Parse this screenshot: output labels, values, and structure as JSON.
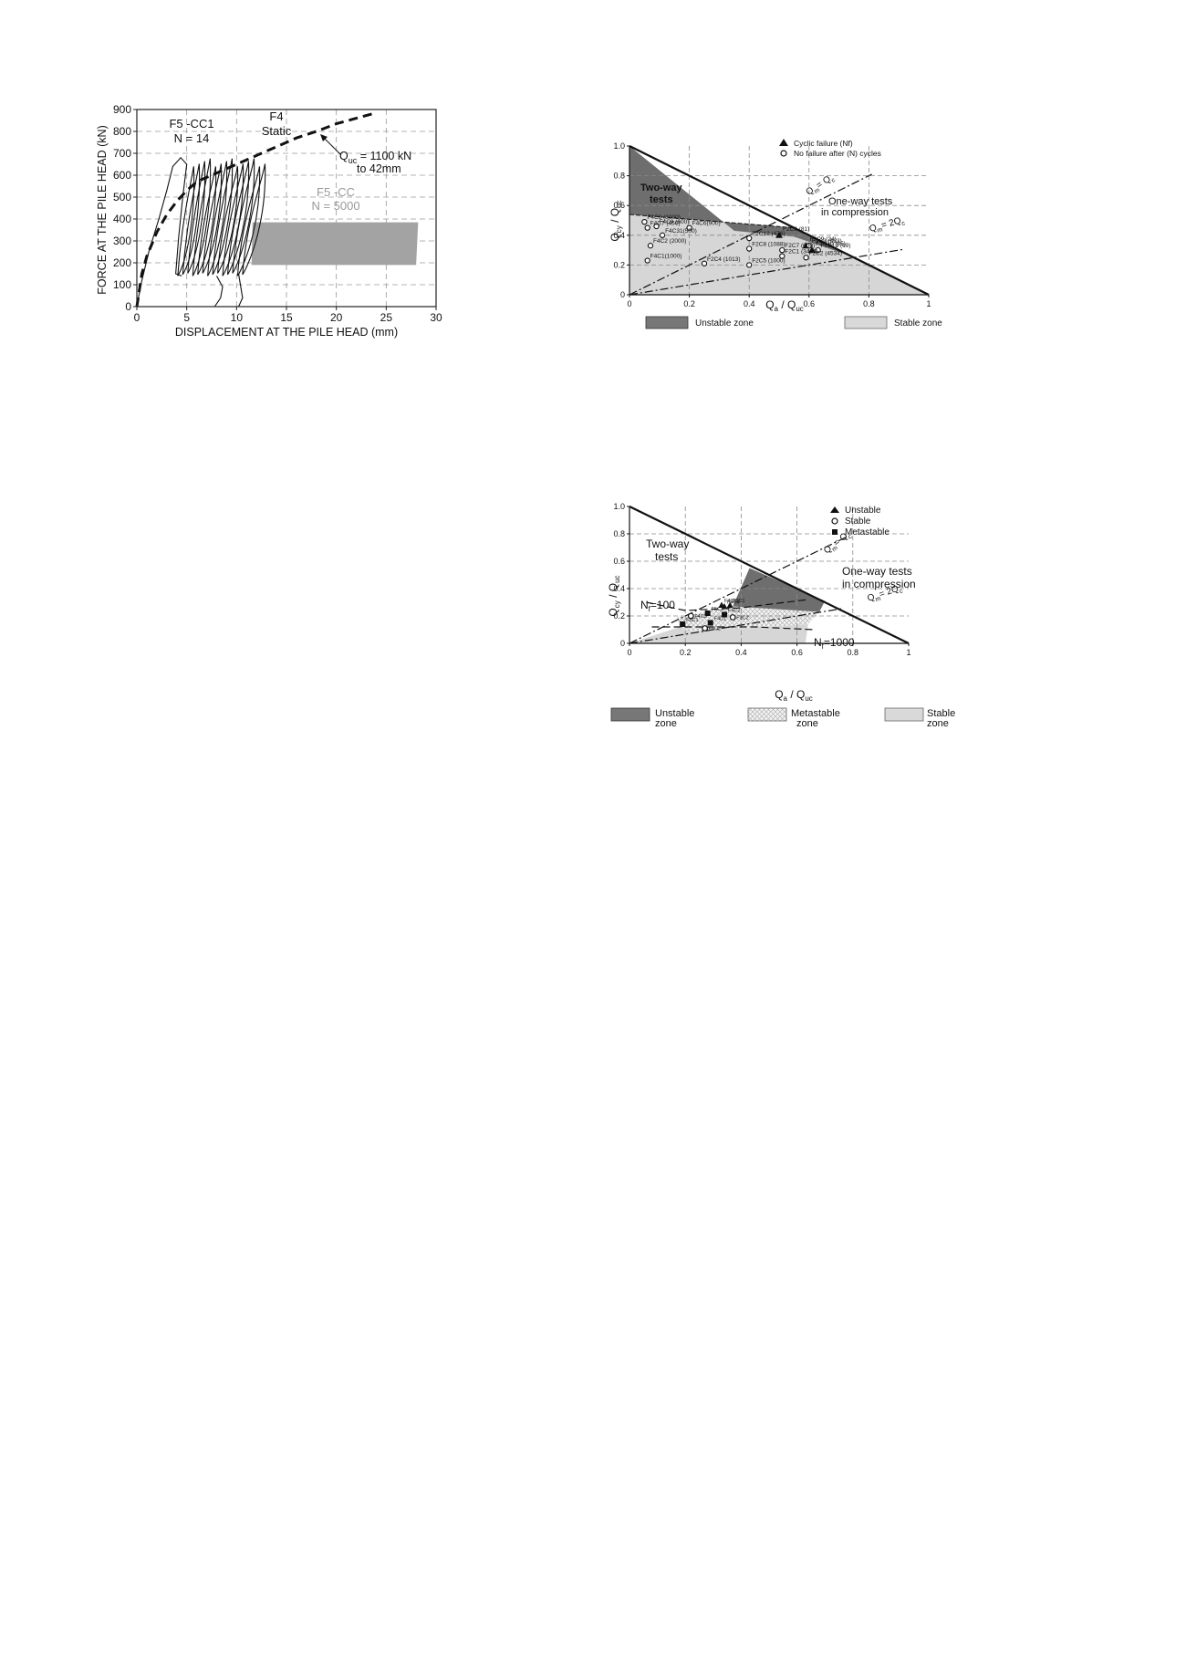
{
  "charts": [
    {
      "type": "line",
      "xlabel": "DISPLACEMENT AT THE PILE HEAD (mm)",
      "ylabel": "FORCE AT THE PILE HEAD (kN)",
      "xlim": [
        0,
        30
      ],
      "ylim": [
        0,
        900
      ],
      "xticks": [
        0,
        5,
        10,
        15,
        20,
        25,
        30
      ],
      "yticks": [
        0,
        100,
        200,
        300,
        400,
        500,
        600,
        700,
        800,
        900
      ],
      "grid": true,
      "series": [
        {
          "name": "F4 Static",
          "style": "dashed",
          "x": [
            0,
            0.5,
            1,
            2,
            3,
            4,
            5,
            6,
            8,
            10,
            12,
            14,
            16,
            18,
            20,
            22,
            24
          ],
          "y": [
            0,
            150,
            230,
            340,
            420,
            480,
            530,
            570,
            610,
            650,
            690,
            730,
            770,
            800,
            835,
            860,
            885
          ]
        },
        {
          "name": "F5 -CC1",
          "style": "cyclic loops",
          "x_range": [
            3.5,
            11.5
          ],
          "y_range": [
            130,
            700
          ],
          "cycles": "N = 14"
        },
        {
          "name": "F5 -CC",
          "style": "shaded band",
          "x": [
            11.5,
            28
          ],
          "y_min": 190,
          "y_max": 385,
          "cycles": "N = 5000"
        }
      ],
      "labels": {
        "cc1_name": "F5 -CC1",
        "cc1_n": "N = 14",
        "static_name": "F4",
        "static_sub": "Static",
        "quc_main": "Q",
        "quc_sub": "uc",
        "quc_rest": " = 1100 kN",
        "quc_line2": "to 42mm",
        "cc_name": "F5 -CC",
        "cc_n": "N = 5000"
      }
    },
    {
      "type": "scatter",
      "xlabel_main": "Q",
      "xlabel_sub1": "a",
      "xlabel_mid": " / Q",
      "xlabel_sub2": "uc",
      "ylabel_main": "Q",
      "ylabel_sub1": "cy",
      "ylabel_mid": " / Q",
      "ylabel_sub2": "uc",
      "xlim": [
        0,
        1
      ],
      "ylim": [
        0,
        1
      ],
      "xticks": [
        0,
        0.2,
        0.4,
        0.6,
        0.8,
        1
      ],
      "xtick_labels": [
        "0",
        "0.2",
        "0.4",
        "0.6",
        "0.8",
        "1"
      ],
      "yticks": [
        0,
        0.2,
        0.4,
        0.6,
        0.8,
        1.0
      ],
      "ytick_labels": [
        "0",
        "0.2",
        "0.4",
        "0.6",
        "0.8",
        "1.0"
      ],
      "grid": true,
      "legend": {
        "placement": "top-right",
        "cyclic_failure": "Cyclic failure (Nf)",
        "no_failure": "No failure after (N) cycles"
      },
      "zone_legend": {
        "unstable": "Unstable zone",
        "stable": "Stable zone"
      },
      "region_labels": {
        "two_way_1": "Two-way",
        "two_way_2": "tests",
        "one_way_1": "One-way tests",
        "one_way_2": "in compression"
      },
      "line_labels": {
        "qm_qc": "Q",
        "qm_qc_sub": "m",
        "qm_qc_rest": "= Q",
        "qm_qc_sub2": "c",
        "qm_2qc": "Q",
        "qm_2qc_sub": "m",
        "qm_2qc_rest": "= 2Q",
        "qm_2qc_sub2": "c"
      },
      "failures": [
        {
          "x": 0.5,
          "y": 0.4,
          "label": "F2C6 (81)"
        },
        {
          "x": 0.59,
          "y": 0.33,
          "label": "F2C9 (24)"
        },
        {
          "x": 0.61,
          "y": 0.3,
          "label": "F2C10 (85)"
        }
      ],
      "no_failures": [
        {
          "x": 0.05,
          "y": 0.49,
          "label": "F4C8 (3000)"
        },
        {
          "x": 0.09,
          "y": 0.46,
          "label": "F4C9 (600)"
        },
        {
          "x": 0.06,
          "y": 0.45,
          "label": "F4C7 (450)"
        },
        {
          "x": 0.2,
          "y": 0.45,
          "label": "F4C6(900)"
        },
        {
          "x": 0.11,
          "y": 0.4,
          "label": "F4C31(500)"
        },
        {
          "x": 0.07,
          "y": 0.33,
          "label": "F4C2 (2000)"
        },
        {
          "x": 0.06,
          "y": 0.23,
          "label": "F4C1(1000)"
        },
        {
          "x": 0.4,
          "y": 0.38,
          "label": "F2C12 (476)"
        },
        {
          "x": 0.4,
          "y": 0.31,
          "label": "F2C8 (1088)"
        },
        {
          "x": 0.51,
          "y": 0.3,
          "label": "F2C7 (600)"
        },
        {
          "x": 0.51,
          "y": 0.26,
          "label": "F2C1 (3406)"
        },
        {
          "x": 0.25,
          "y": 0.21,
          "label": "F2C4 (1013)"
        },
        {
          "x": 0.4,
          "y": 0.2,
          "label": "F2C5 (1000)"
        },
        {
          "x": 0.59,
          "y": 0.25,
          "label": "F2C2 (4534)"
        },
        {
          "x": 0.6,
          "y": 0.33,
          "label": "F2C3 (683)"
        },
        {
          "x": 0.63,
          "y": 0.3,
          "label": "F2C13 (69)"
        }
      ]
    },
    {
      "type": "scatter",
      "xlabel_main": "Q",
      "xlabel_sub1": "a",
      "xlabel_mid": " / Q",
      "xlabel_sub2": "uc",
      "ylabel_main": "Q",
      "ylabel_sub1": "cy",
      "ylabel_mid": " / Q",
      "ylabel_sub2": "uc",
      "xlim": [
        0,
        1
      ],
      "ylim": [
        0,
        1
      ],
      "xticks": [
        0,
        0.2,
        0.4,
        0.6,
        0.8,
        1
      ],
      "xtick_labels": [
        "0",
        "0.2",
        "0.4",
        "0.6",
        "0.8",
        "1"
      ],
      "yticks": [
        0,
        0.2,
        0.4,
        0.6,
        0.8,
        1.0
      ],
      "ytick_labels": [
        "0",
        "0.2",
        "0.4",
        "0.6",
        "0.8",
        "1.0"
      ],
      "grid": true,
      "legend": {
        "placement": "top-right",
        "unstable": "Unstable",
        "stable": "Stable",
        "metastable": "Metastable"
      },
      "zone_legend": {
        "unstable_1": "Unstable",
        "unstable_2": "zone",
        "metastable_1": "Metastable",
        "metastable_2": "zone",
        "stable_1": "Stable",
        "stable_2": "zone"
      },
      "region_labels": {
        "two_way_1": "Two-way",
        "two_way_2": "tests",
        "one_way_1": "One-way tests",
        "one_way_2": "in compression"
      },
      "line_labels": {
        "nf100_main": "N",
        "nf100_sub": "f",
        "nf100_rest": "=100",
        "nf1000_main": "N",
        "nf1000_sub": "f",
        "nf1000_rest": "=1000",
        "qm_qc": "Q",
        "qm_qc_sub": "m",
        "qm_qc_rest": "= Q",
        "qm_qc_sub2": "c",
        "qm_2qc": "Q",
        "qm_2qc_sub": "m",
        "qm_2qc_rest": "= 2Q",
        "qm_2qc_sub2": "c"
      },
      "unstable_points": [
        {
          "x": 0.33,
          "y": 0.28,
          "label": "F4C5"
        },
        {
          "x": 0.36,
          "y": 0.28,
          "label": "F3C1"
        },
        {
          "x": 0.34,
          "y": 0.27,
          "label": "F4C4"
        }
      ],
      "metastable_points": [
        {
          "x": 0.28,
          "y": 0.22,
          "label": "F5C3"
        },
        {
          "x": 0.34,
          "y": 0.21,
          "label": "F4C2"
        },
        {
          "x": 0.29,
          "y": 0.15,
          "label": "F4C1"
        },
        {
          "x": 0.19,
          "y": 0.14,
          "label": "F5C1"
        }
      ],
      "stable_points": [
        {
          "x": 0.37,
          "y": 0.19,
          "label": "F3C2"
        },
        {
          "x": 0.27,
          "y": 0.11,
          "label": "F5C2"
        },
        {
          "x": 0.22,
          "y": 0.2,
          "label": "F4C3"
        }
      ]
    }
  ]
}
